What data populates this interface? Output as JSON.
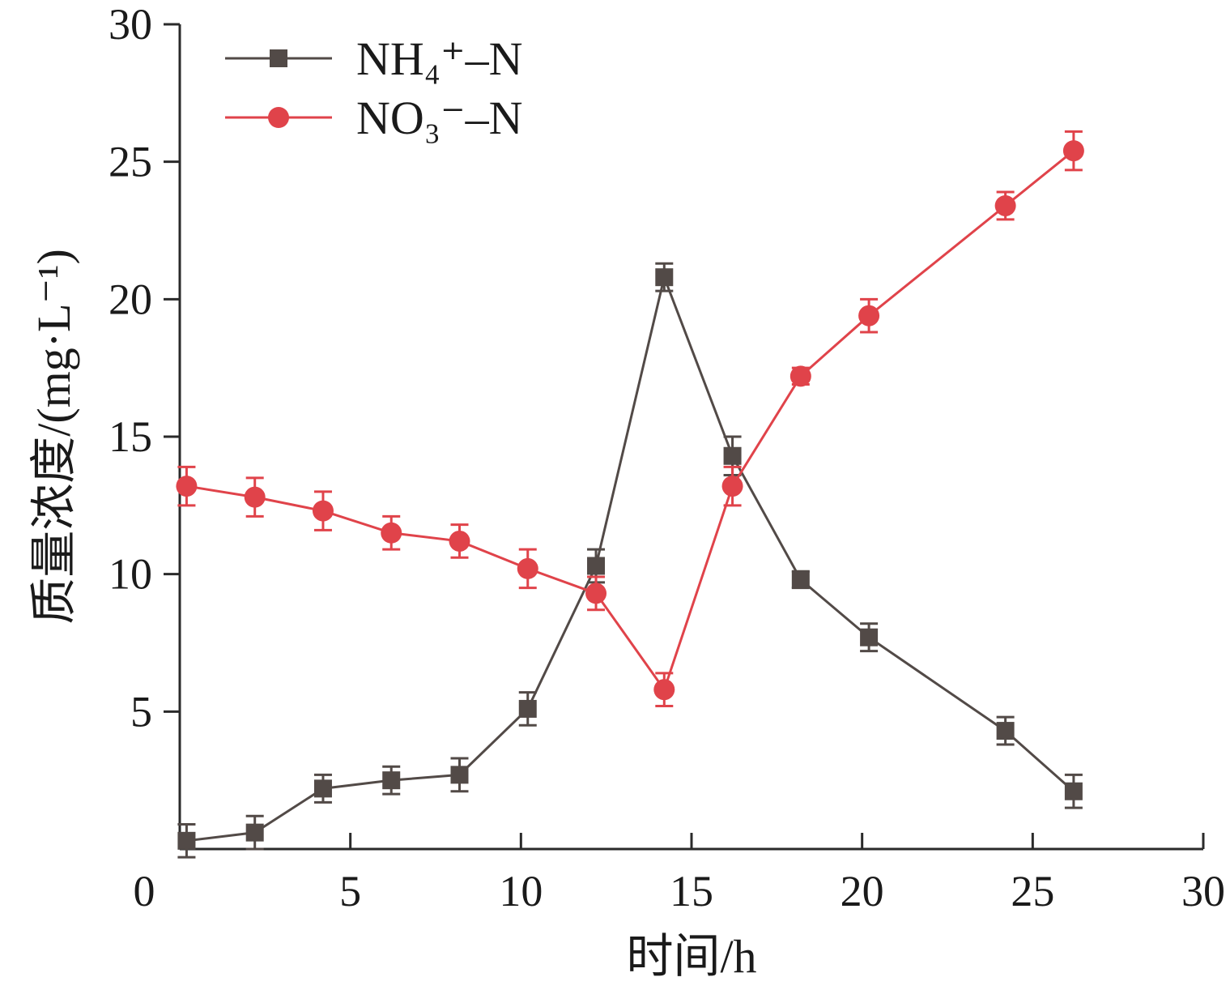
{
  "chart_data": {
    "type": "line",
    "xlabel": "时间/h",
    "ylabel": "质量浓度/(mg·L⁻¹)",
    "xlim": [
      0,
      30
    ],
    "ylim": [
      0,
      30
    ],
    "xticks": [
      0,
      5,
      10,
      15,
      20,
      25,
      30
    ],
    "yticks": [
      5,
      10,
      15,
      20,
      25,
      30
    ],
    "grid": false,
    "legend_position": "top-left",
    "series": [
      {
        "name": "NH₄⁺–N",
        "color": "#524a47",
        "marker": "square",
        "x": [
          0.2,
          2.2,
          4.2,
          6.2,
          8.2,
          10.2,
          12.2,
          14.2,
          16.2,
          18.2,
          20.2,
          24.2,
          26.2
        ],
        "y": [
          0.3,
          0.6,
          2.2,
          2.5,
          2.7,
          5.1,
          10.3,
          20.8,
          14.3,
          9.8,
          7.7,
          4.3,
          2.1
        ],
        "err": [
          0.6,
          0.6,
          0.5,
          0.5,
          0.6,
          0.6,
          0.6,
          0.5,
          0.7,
          0.3,
          0.5,
          0.5,
          0.6
        ]
      },
      {
        "name": "NO₃⁻–N",
        "color": "#e0434a",
        "marker": "circle",
        "x": [
          0.2,
          2.2,
          4.2,
          6.2,
          8.2,
          10.2,
          12.2,
          14.2,
          16.2,
          18.2,
          20.2,
          24.2,
          26.2
        ],
        "y": [
          13.2,
          12.8,
          12.3,
          11.5,
          11.2,
          10.2,
          9.3,
          5.8,
          13.2,
          17.2,
          19.4,
          23.4,
          25.4
        ],
        "err": [
          0.7,
          0.7,
          0.7,
          0.6,
          0.6,
          0.7,
          0.6,
          0.6,
          0.7,
          0.3,
          0.6,
          0.5,
          0.7
        ]
      }
    ]
  }
}
